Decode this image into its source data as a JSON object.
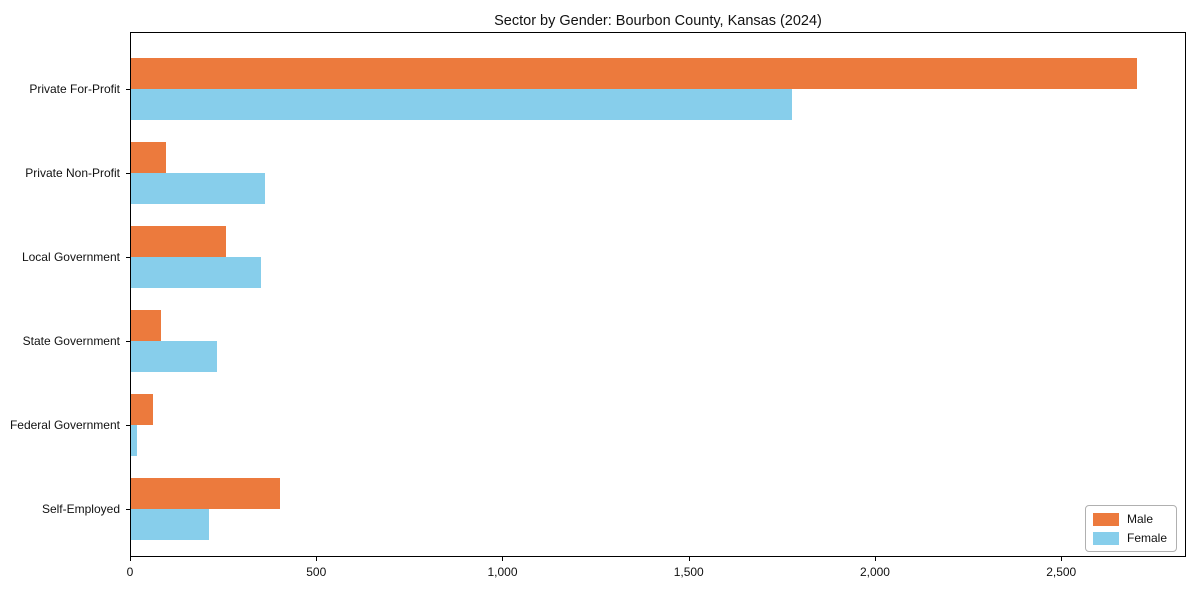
{
  "chart_data": {
    "type": "bar",
    "orientation": "horizontal",
    "title": "Sector by Gender: Bourbon County, Kansas (2024)",
    "categories": [
      "Private For-Profit",
      "Private Non-Profit",
      "Local Government",
      "State Government",
      "Federal Government",
      "Self-Employed"
    ],
    "series": [
      {
        "name": "Male",
        "color": "#ec7a3d",
        "values": [
          2700,
          95,
          255,
          80,
          60,
          400
        ]
      },
      {
        "name": "Female",
        "color": "#87ceeb",
        "values": [
          1775,
          360,
          350,
          230,
          15,
          210
        ]
      }
    ],
    "xlabel": "",
    "ylabel": "",
    "xlim": [
      0,
      2835
    ],
    "xticks": [
      {
        "value": 0,
        "label": "0"
      },
      {
        "value": 500,
        "label": "500"
      },
      {
        "value": 1000,
        "label": "1,000"
      },
      {
        "value": 1500,
        "label": "1,500"
      },
      {
        "value": 2000,
        "label": "2,000"
      },
      {
        "value": 2500,
        "label": "2,500"
      }
    ],
    "grid": false,
    "legend": {
      "position": "lower-right",
      "entries": [
        {
          "label": "Male",
          "color": "#ec7a3d"
        },
        {
          "label": "Female",
          "color": "#87ceeb"
        }
      ]
    },
    "colors": {
      "male": "#ec7a3d",
      "female": "#87ceeb",
      "spine": "#000000",
      "background": "#ffffff"
    }
  }
}
